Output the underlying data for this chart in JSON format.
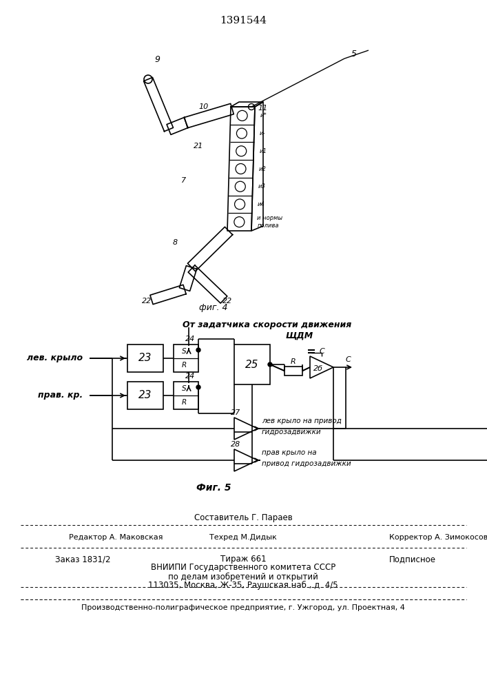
{
  "title": "1391544",
  "fig4_label": "фиг. 4",
  "fig5_label": "Фиг. 5",
  "fig5_title_line1": "От задатчика скорости движения",
  "fig5_title_line2": "ЩДМ",
  "lev_label": "лев. крыло",
  "prav_label": "прав. кр.",
  "label_23": "23",
  "label_24": "24",
  "label_25": "25",
  "label_26": "2б",
  "label_27": "27",
  "label_28": "28",
  "label_S": "S",
  "label_R_upper": "R",
  "label_R_resistor": "R",
  "label_C": "C",
  "text_lev_output_1": "лев крыло на привод",
  "text_lev_output_2": "гидрозадвижки",
  "text_prav_output_1": "прав крыло на",
  "text_prav_output_2": "привод гидрозадвижки",
  "bottom_составитель": "Составитель Г. Параев",
  "bottom_редактор": "Редактор А. Маковская",
  "bottom_техред": "Техред М.Дидык",
  "bottom_корректор": "Корректор А. Зимокосов",
  "bottom_заказ": "Заказ 1831/2",
  "bottom_тираж": "Тираж 661",
  "bottom_подписное": "Подписное",
  "bottom_вниипи": "ВНИИПИ Государственного комитета СССР",
  "bottom_дела": "по делам изобретений и открытий",
  "bottom_адрес": "113035, Москва, Ж-35, Раушская наб., д. 4/5",
  "bottom_завод": "Производственно-полиграфическое предприятие, г. Ужгород, ул. Проектная, 4",
  "bg_color": "#ffffff",
  "line_color": "#000000",
  "label_9": "9",
  "label_10": "10",
  "label_11": "11",
  "label_21": "21",
  "label_7": "7",
  "label_8": "8",
  "label_22a": "22",
  "label_22b": "22",
  "label_5": "5",
  "labels_u": [
    "и*",
    "и-",
    "и1",
    "и2",
    "и3",
    "и4",
    "и нормы\nполива"
  ]
}
